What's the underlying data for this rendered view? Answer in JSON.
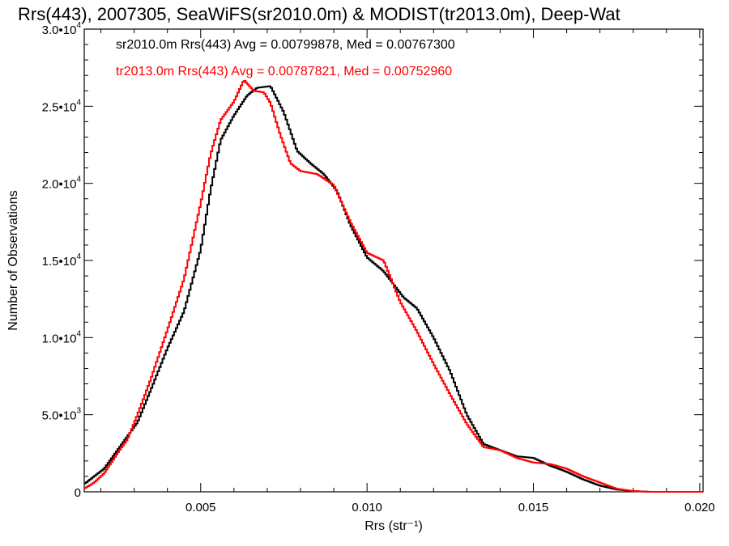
{
  "chart_data": {
    "type": "line",
    "title": "Rrs(443), 2007305, SeaWiFS(sr2010.0m) & MODIST(tr2013.0m), Deep-Wat",
    "xlabel": "Rrs (str⁻¹)",
    "ylabel": "Number of Observations",
    "xlim": [
      0.0015,
      0.0201
    ],
    "ylim": [
      0,
      30000
    ],
    "x_ticks": [
      {
        "value": 0.005,
        "label": "0.005"
      },
      {
        "value": 0.01,
        "label": "0.010"
      },
      {
        "value": 0.015,
        "label": "0.015"
      },
      {
        "value": 0.02,
        "label": "0.020"
      }
    ],
    "y_ticks": [
      {
        "value": 0,
        "mant": "0",
        "exp": ""
      },
      {
        "value": 5000,
        "mant": "5.0•10",
        "exp": "3"
      },
      {
        "value": 10000,
        "mant": "1.0•10",
        "exp": "4"
      },
      {
        "value": 15000,
        "mant": "1.5•10",
        "exp": "4"
      },
      {
        "value": 20000,
        "mant": "2.0•10",
        "exp": "4"
      },
      {
        "value": 25000,
        "mant": "2.5•10",
        "exp": "4"
      },
      {
        "value": 30000,
        "mant": "3.0•10",
        "exp": "4"
      }
    ],
    "legend_placement": "top-left",
    "series": [
      {
        "name": "sr2010.0m Rrs(443) Avg = 0.00799878, Med = 0.00767300",
        "color": "#000000",
        "points": [
          [
            0.0015,
            500
          ],
          [
            0.0018,
            1000
          ],
          [
            0.0021,
            1500
          ],
          [
            0.0025,
            2700
          ],
          [
            0.0028,
            3600
          ],
          [
            0.0031,
            4500
          ],
          [
            0.0035,
            6600
          ],
          [
            0.004,
            9300
          ],
          [
            0.0045,
            11700
          ],
          [
            0.005,
            15700
          ],
          [
            0.0053,
            19600
          ],
          [
            0.0056,
            22800
          ],
          [
            0.006,
            24400
          ],
          [
            0.0064,
            25700
          ],
          [
            0.0067,
            26200
          ],
          [
            0.0071,
            26300
          ],
          [
            0.0075,
            24600
          ],
          [
            0.0079,
            22100
          ],
          [
            0.0083,
            21300
          ],
          [
            0.0087,
            20600
          ],
          [
            0.0091,
            19500
          ],
          [
            0.0095,
            17300
          ],
          [
            0.01,
            15200
          ],
          [
            0.0105,
            14300
          ],
          [
            0.0111,
            12600
          ],
          [
            0.0115,
            11900
          ],
          [
            0.012,
            10000
          ],
          [
            0.0125,
            7800
          ],
          [
            0.013,
            5000
          ],
          [
            0.0135,
            3100
          ],
          [
            0.014,
            2700
          ],
          [
            0.0145,
            2300
          ],
          [
            0.015,
            2200
          ],
          [
            0.0155,
            1700
          ],
          [
            0.016,
            1300
          ],
          [
            0.0165,
            800
          ],
          [
            0.017,
            400
          ],
          [
            0.0175,
            150
          ],
          [
            0.018,
            50
          ],
          [
            0.0185,
            0
          ],
          [
            0.0201,
            0
          ]
        ]
      },
      {
        "name": "tr2013.0m Rrs(443) Avg = 0.00787821, Med = 0.00752960",
        "color": "#ff0000",
        "points": [
          [
            0.0015,
            200
          ],
          [
            0.0018,
            600
          ],
          [
            0.0021,
            1200
          ],
          [
            0.0025,
            2500
          ],
          [
            0.0028,
            3400
          ],
          [
            0.0031,
            5000
          ],
          [
            0.0035,
            7300
          ],
          [
            0.004,
            10500
          ],
          [
            0.0045,
            13800
          ],
          [
            0.005,
            18700
          ],
          [
            0.0053,
            21900
          ],
          [
            0.0056,
            24100
          ],
          [
            0.006,
            25300
          ],
          [
            0.0063,
            26700
          ],
          [
            0.0066,
            26000
          ],
          [
            0.0069,
            25900
          ],
          [
            0.0071,
            25200
          ],
          [
            0.0074,
            23100
          ],
          [
            0.0077,
            21300
          ],
          [
            0.008,
            20800
          ],
          [
            0.0085,
            20600
          ],
          [
            0.009,
            19900
          ],
          [
            0.0095,
            17500
          ],
          [
            0.01,
            15500
          ],
          [
            0.0105,
            15000
          ],
          [
            0.011,
            12300
          ],
          [
            0.0115,
            10400
          ],
          [
            0.012,
            8300
          ],
          [
            0.0125,
            6300
          ],
          [
            0.013,
            4400
          ],
          [
            0.0135,
            2900
          ],
          [
            0.014,
            2700
          ],
          [
            0.0145,
            2200
          ],
          [
            0.015,
            1900
          ],
          [
            0.0155,
            1800
          ],
          [
            0.016,
            1500
          ],
          [
            0.0165,
            1000
          ],
          [
            0.017,
            600
          ],
          [
            0.0175,
            200
          ],
          [
            0.018,
            50
          ],
          [
            0.0185,
            0
          ],
          [
            0.0201,
            0
          ]
        ]
      }
    ]
  }
}
